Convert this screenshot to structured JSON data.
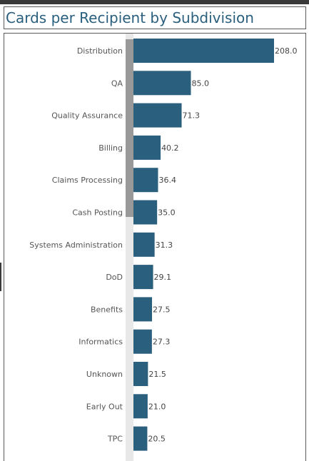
{
  "header": {
    "title": "Cards per Recipient by Subdivision"
  },
  "colors": {
    "bar": "#2b5f7e",
    "title": "#2b5f7e",
    "scroll_thumb": "#999999",
    "scroll_track": "#e8e8e8"
  },
  "chart_data": {
    "type": "bar",
    "orientation": "horizontal",
    "title": "Cards per Recipient by Subdivision",
    "xlabel": "",
    "ylabel": "",
    "categories": [
      "Distribution",
      "QA",
      "Quality Assurance",
      "Billing",
      "Claims Processing",
      "Cash Posting",
      "Systems Administration",
      "DoD",
      "Benefits",
      "Informatics",
      "Unknown",
      "Early Out",
      "TPC"
    ],
    "values": [
      208.0,
      85.0,
      71.3,
      40.2,
      36.4,
      35.0,
      31.3,
      29.1,
      27.5,
      27.3,
      21.5,
      21.0,
      20.5
    ],
    "value_labels": [
      "208.0",
      "85.0",
      "71.3",
      "40.2",
      "36.4",
      "35.0",
      "31.3",
      "29.1",
      "27.5",
      "27.3",
      "21.5",
      "21.0",
      "20.5"
    ],
    "xlim": [
      0,
      208
    ],
    "grid": false,
    "legend": "none"
  }
}
